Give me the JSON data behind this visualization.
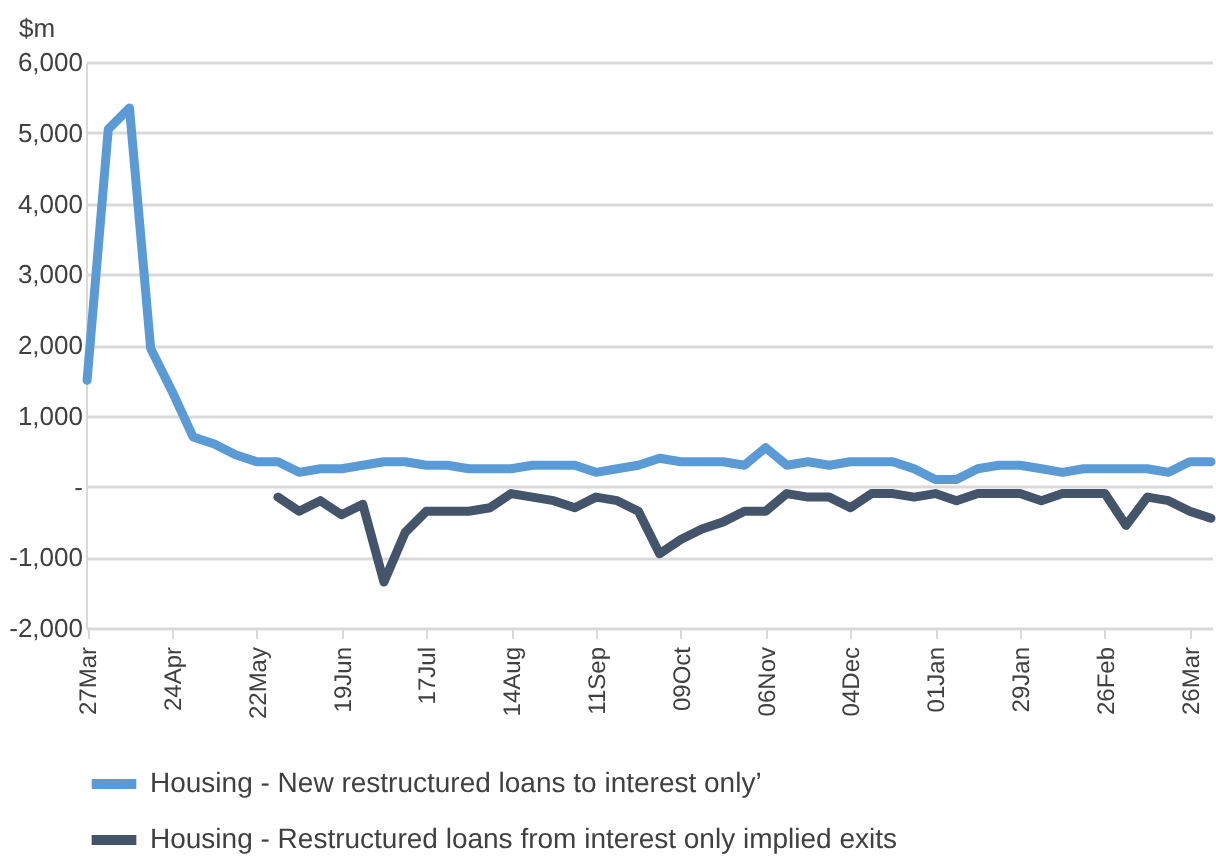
{
  "chart_data": {
    "type": "line",
    "ylabel": "$m",
    "categories": [
      "27Mar",
      null,
      null,
      null,
      "24Apr",
      null,
      null,
      null,
      "22May",
      null,
      null,
      null,
      "19Jun",
      null,
      null,
      null,
      "17Jul",
      null,
      null,
      null,
      "14Aug",
      null,
      null,
      null,
      "11Sep",
      null,
      null,
      null,
      "09Oct",
      null,
      null,
      null,
      "06Nov",
      null,
      null,
      null,
      "04Dec",
      null,
      null,
      null,
      "01Jan",
      null,
      null,
      null,
      "29Jan",
      null,
      null,
      null,
      "26Feb",
      null,
      null,
      null,
      "26Mar",
      null
    ],
    "series": [
      {
        "name": "Housing - New restructured loans to interest only’",
        "color": "#5b9bd5",
        "values": [
          1500,
          5050,
          5350,
          1950,
          1350,
          700,
          600,
          450,
          350,
          350,
          200,
          250,
          250,
          300,
          350,
          350,
          300,
          300,
          250,
          250,
          250,
          300,
          300,
          300,
          200,
          250,
          300,
          400,
          350,
          350,
          350,
          300,
          550,
          300,
          350,
          300,
          350,
          350,
          350,
          250,
          100,
          100,
          250,
          300,
          300,
          250,
          200,
          250,
          250,
          250,
          250,
          200,
          350,
          350
        ]
      },
      {
        "name": "Housing - Restructured loans from interest only implied exits",
        "color": "#44546a",
        "values": [
          null,
          null,
          null,
          null,
          null,
          null,
          null,
          null,
          null,
          -150,
          -350,
          -200,
          -400,
          -250,
          -1350,
          -650,
          -350,
          -350,
          -350,
          -300,
          -100,
          -150,
          -200,
          -300,
          -150,
          -200,
          -350,
          -950,
          -750,
          -600,
          -500,
          -350,
          -350,
          -100,
          -150,
          -150,
          -300,
          -100,
          -100,
          -150,
          -100,
          -200,
          -100,
          -100,
          -100,
          -200,
          -100,
          -100,
          -100,
          -550,
          -150,
          -200,
          -350,
          -450
        ]
      }
    ],
    "ylim": [
      -2000,
      6000
    ],
    "yticks": [
      {
        "value": -2000,
        "label": "-2,000"
      },
      {
        "value": -1000,
        "label": "-1,000"
      },
      {
        "value": 0,
        "label": "-"
      },
      {
        "value": 1000,
        "label": "1,000"
      },
      {
        "value": 2000,
        "label": "2,000"
      },
      {
        "value": 3000,
        "label": "3,000"
      },
      {
        "value": 4000,
        "label": "4,000"
      },
      {
        "value": 5000,
        "label": "5,000"
      },
      {
        "value": 6000,
        "label": "6,000"
      }
    ],
    "grid": "y",
    "legend": "bottom",
    "marker": "none",
    "line_style": "solid"
  }
}
